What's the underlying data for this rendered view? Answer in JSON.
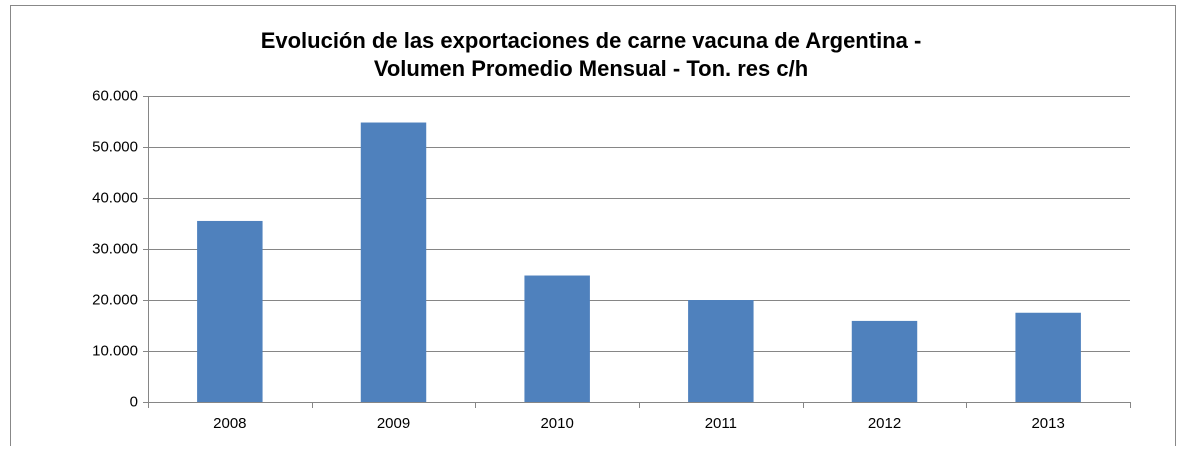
{
  "chart_data": {
    "type": "bar",
    "title": [
      "Evolución de las exportaciones de carne vacuna de Argentina -",
      "Volumen Promedio Mensual - Ton. res c/h"
    ],
    "categories": [
      "2008",
      "2009",
      "2010",
      "2011",
      "2012",
      "2013"
    ],
    "values": [
      35500,
      54800,
      24800,
      20000,
      15900,
      17500
    ],
    "color": "#4f81bd",
    "ylim": [
      0,
      60000
    ],
    "yticks": [
      0,
      {
        "value": 10000,
        "label": "10.000"
      },
      {
        "value": 20000,
        "label": "20.000"
      },
      {
        "value": 30000,
        "label": "30.000"
      },
      {
        "value": 40000,
        "label": "40.000"
      },
      {
        "value": 50000,
        "label": "50.000"
      },
      {
        "value": 60000,
        "label": "60.000"
      }
    ],
    "grid": true
  }
}
